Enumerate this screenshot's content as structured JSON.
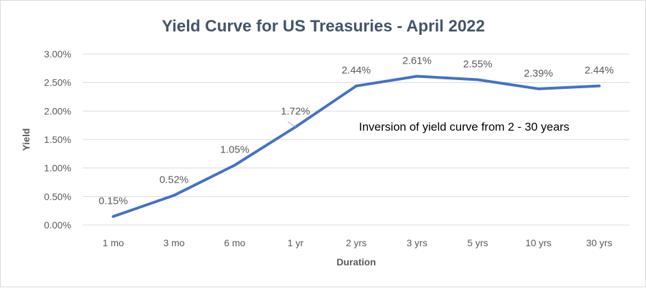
{
  "chart_data": {
    "type": "line",
    "title": "Yield Curve for US Treasuries - April 2022",
    "xlabel": "Duration",
    "ylabel": "Yield",
    "categories": [
      "1 mo",
      "3 mo",
      "6 mo",
      "1 yr",
      "2 yrs",
      "3 yrs",
      "5 yrs",
      "10 yrs",
      "30 yrs"
    ],
    "series": [
      {
        "values": [
          0.15,
          0.52,
          1.05,
          1.72,
          2.44,
          2.61,
          2.55,
          2.39,
          2.44
        ],
        "data_labels": [
          "0.15%",
          "0.52%",
          "1.05%",
          "1.72%",
          "2.44%",
          "2.61%",
          "2.55%",
          "2.39%",
          "2.44%"
        ],
        "color": "#4472c4"
      }
    ],
    "ylim": [
      0,
      3
    ],
    "yticks": [
      "0.00%",
      "0.50%",
      "1.00%",
      "1.50%",
      "2.00%",
      "2.50%",
      "3.00%"
    ],
    "grid": true,
    "annotation": "Inversion of yield curve from 2 - 30 years",
    "colors": {
      "line": "#4472c4",
      "grid": "#d9d9d9",
      "text": "#595959",
      "title": "#44546a"
    }
  }
}
